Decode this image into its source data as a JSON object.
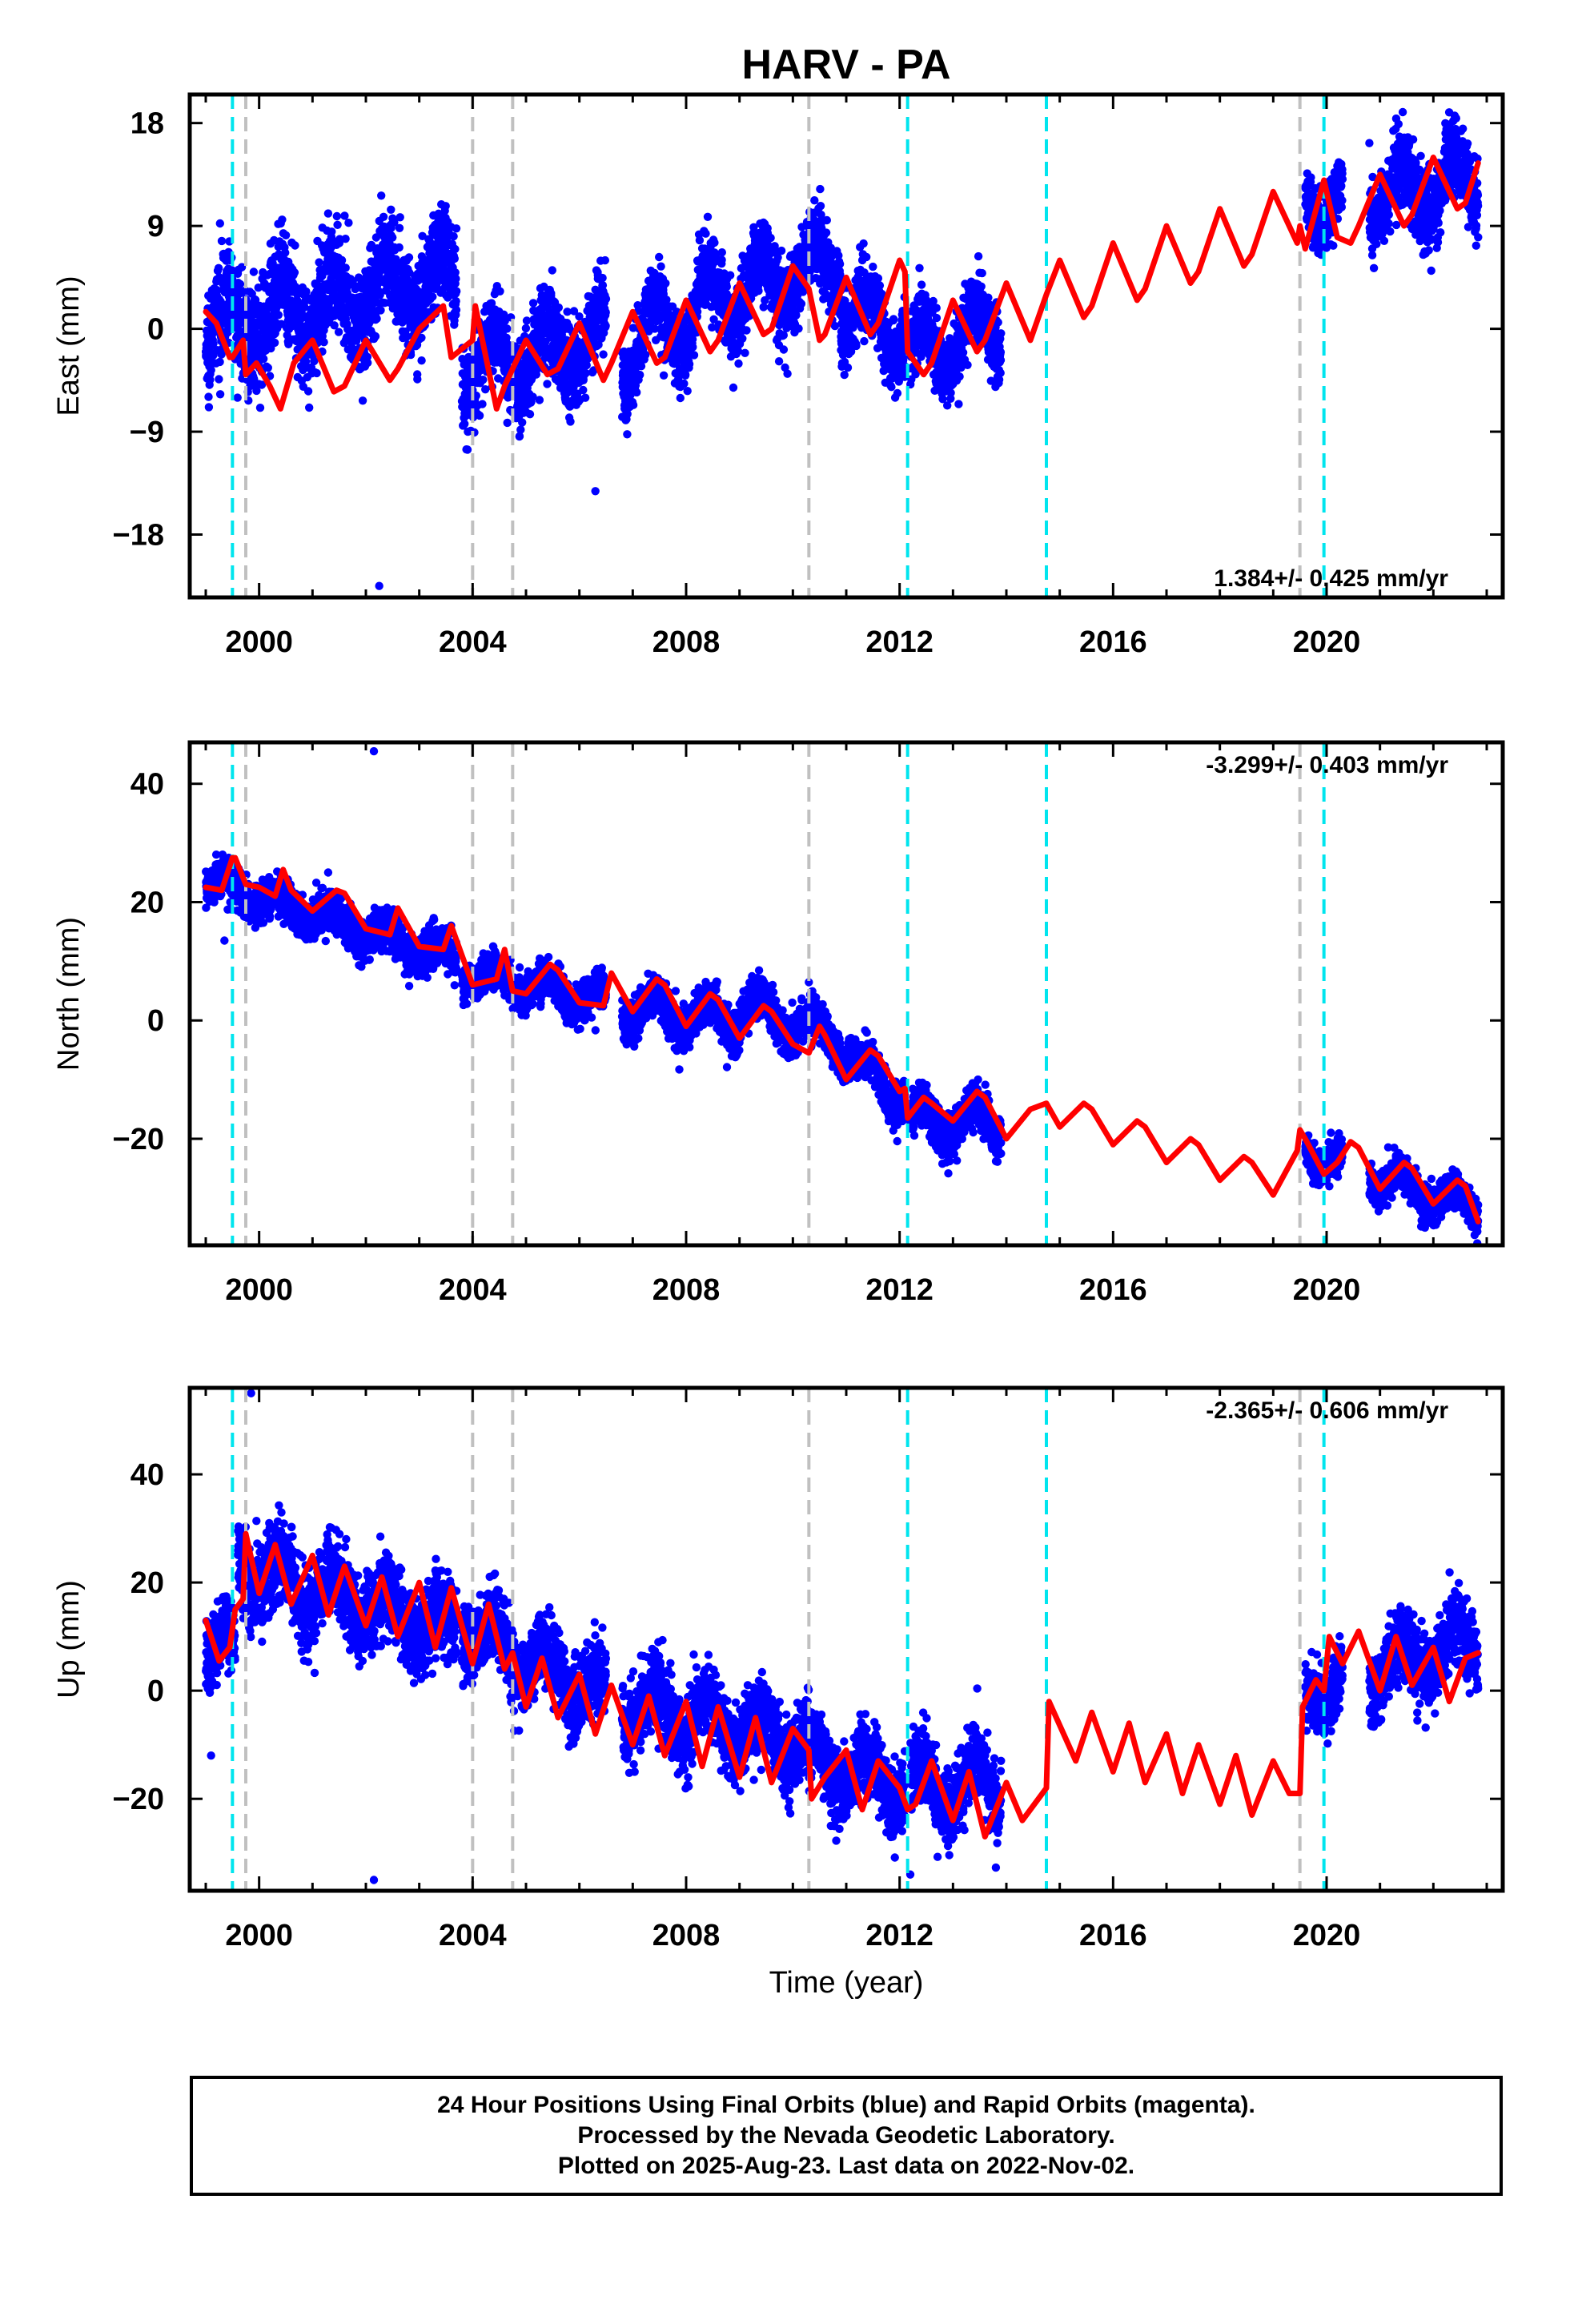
{
  "title": "HARV - PA",
  "footer": {
    "lines": [
      "24 Hour Positions Using Final Orbits (blue) and Rapid Orbits (magenta).",
      "Processed by the Nevada Geodetic Laboratory.",
      "Plotted on 2025-Aug-23. Last data on 2022-Nov-02."
    ]
  },
  "colors": {
    "data_points": "#0000ff",
    "model_fit": "#ff0000",
    "cyan_lines": "#00e5ee",
    "gray_lines": "#c0c0c0"
  },
  "chart_data": [
    {
      "type": "scatter",
      "component": "East",
      "ylabel": "East (mm)",
      "xlabel": "",
      "xlim": [
        1998.7,
        2023.3
      ],
      "ylim": [
        -23.5,
        20.5
      ],
      "xticks": [
        2000,
        2004,
        2008,
        2012,
        2016,
        2020
      ],
      "yticks": [
        18,
        9,
        0,
        -9,
        -18
      ],
      "rate_label": "1.384+/- 0.425 mm/yr",
      "rate_position": "bottom-right",
      "cyan_dashed_lines": [
        1999.5,
        2012.15,
        2014.75,
        2019.95
      ],
      "gray_dashed_lines": [
        1999.75,
        2004.0,
        2004.75,
        2010.3,
        2019.5
      ],
      "series": [
        {
          "style": "points",
          "segments": [
            {
              "start": 1999.0,
              "end": 2003.7,
              "base": 0.0,
              "rate": 1.0,
              "amp": 2.5,
              "noise": 2.6
            },
            {
              "start": 2003.8,
              "end": 2006.5,
              "base": -3.5,
              "rate": 1.0,
              "amp": 2.5,
              "noise": 2.2
            },
            {
              "start": 2006.8,
              "end": 2009.0,
              "base": -2.0,
              "rate": 2.6,
              "amp": 3.0,
              "noise": 2.0
            },
            {
              "start": 2009.0,
              "end": 2010.9,
              "base": 3.5,
              "rate": 1.2,
              "amp": 2.5,
              "noise": 2.0
            },
            {
              "start": 2010.9,
              "end": 2012.1,
              "base": 1.5,
              "rate": -1.5,
              "amp": 2.5,
              "noise": 1.8
            },
            {
              "start": 2012.2,
              "end": 2013.9,
              "base": -2.5,
              "rate": 1.8,
              "amp": 2.5,
              "noise": 1.8
            },
            {
              "start": 2019.6,
              "end": 2020.3,
              "base": 11.0,
              "rate": 1.0,
              "amp": 2.0,
              "noise": 1.6
            },
            {
              "start": 2020.8,
              "end": 2022.84,
              "base": 12.0,
              "rate": 0.3,
              "amp": 2.5,
              "noise": 2.0
            }
          ],
          "outliers": [
            [
              2002.25,
              -22.5
            ],
            [
              2006.3,
              -14.2
            ],
            [
              2012.0,
              -2.5
            ]
          ]
        },
        {
          "style": "line",
          "x": [
            1999.0,
            1999.2,
            1999.45,
            1999.5,
            1999.7,
            1999.75,
            1999.95,
            2000.2,
            2000.4,
            2000.65,
            2001.0,
            2001.4,
            2001.6,
            2002.0,
            2002.45,
            2002.6,
            2003.0,
            2003.45,
            2003.6,
            2004.0,
            2004.05,
            2004.45,
            2004.6,
            2004.75,
            2005.0,
            2005.4,
            2005.6,
            2006.0,
            2006.45,
            2006.6,
            2007.0,
            2007.45,
            2007.6,
            2008.0,
            2008.45,
            2008.6,
            2009.0,
            2009.45,
            2009.6,
            2010.0,
            2010.3,
            2010.5,
            2010.6,
            2011.0,
            2011.45,
            2011.6,
            2012.0,
            2012.1,
            2012.15,
            2012.45,
            2012.6,
            2013.0,
            2013.45,
            2013.6,
            2014.0,
            2014.45,
            2014.75,
            2015.0,
            2015.45,
            2015.6,
            2016.0,
            2016.45,
            2016.6,
            2017.0,
            2017.45,
            2017.6,
            2018.0,
            2018.45,
            2018.6,
            2019.0,
            2019.45,
            2019.5,
            2019.6,
            2019.95,
            2020.2,
            2020.45,
            2020.6,
            2021.0,
            2021.45,
            2021.6,
            2022.0,
            2022.45,
            2022.6,
            2022.84
          ],
          "y": [
            1.5,
            0.5,
            -2.5,
            -2.5,
            -1.0,
            -4.0,
            -3.0,
            -5.0,
            -7.0,
            -3.0,
            -1.0,
            -5.5,
            -5.0,
            -1.0,
            -4.5,
            -3.5,
            0.0,
            2.0,
            -2.5,
            -1.0,
            2.0,
            -7.0,
            -5.0,
            -3.5,
            -1.0,
            -4.0,
            -3.5,
            0.5,
            -4.5,
            -3.0,
            1.5,
            -3.0,
            -2.5,
            2.5,
            -2.0,
            -1.0,
            4.0,
            -0.5,
            0.0,
            5.5,
            3.5,
            -1.0,
            -0.5,
            4.5,
            -0.5,
            0.5,
            6.0,
            5.0,
            -2.0,
            -4.0,
            -3.0,
            2.5,
            -2.0,
            -1.0,
            4.0,
            -1.0,
            3.0,
            6.0,
            1.0,
            2.0,
            7.5,
            2.5,
            3.5,
            9.0,
            4.0,
            5.0,
            10.5,
            5.5,
            6.5,
            12.0,
            7.5,
            9.0,
            7.0,
            13.0,
            8.0,
            7.5,
            9.0,
            13.5,
            9.0,
            10.0,
            15.0,
            10.5,
            11.0,
            14.5
          ]
        }
      ]
    },
    {
      "type": "scatter",
      "component": "North",
      "ylabel": "North (mm)",
      "xlabel": "",
      "xlim": [
        1998.7,
        2023.3
      ],
      "ylim": [
        -38,
        47
      ],
      "xticks": [
        2000,
        2004,
        2008,
        2012,
        2016,
        2020
      ],
      "yticks": [
        40,
        20,
        0,
        -20
      ],
      "rate_label": "-3.299+/- 0.403 mm/yr",
      "rate_position": "top-right",
      "cyan_dashed_lines": [
        1999.5,
        2012.15,
        2014.75,
        2019.95
      ],
      "gray_dashed_lines": [
        1999.75,
        2004.0,
        2004.75,
        2010.3,
        2019.5
      ],
      "series": [
        {
          "style": "points",
          "segments": [
            {
              "start": 1999.0,
              "end": 2003.7,
              "base": 24.0,
              "rate": -3.0,
              "amp": 2.0,
              "noise": 2.0
            },
            {
              "start": 2003.8,
              "end": 2006.5,
              "base": 8.5,
              "rate": -2.0,
              "amp": 2.0,
              "noise": 1.8
            },
            {
              "start": 2006.8,
              "end": 2009.0,
              "base": 2.0,
              "rate": -1.0,
              "amp": 2.5,
              "noise": 2.0
            },
            {
              "start": 2009.0,
              "end": 2010.9,
              "base": 3.0,
              "rate": -3.5,
              "amp": 2.5,
              "noise": 2.0
            },
            {
              "start": 2010.9,
              "end": 2012.1,
              "base": -5.0,
              "rate": -7.0,
              "amp": 2.5,
              "noise": 2.0
            },
            {
              "start": 2012.2,
              "end": 2013.9,
              "base": -17.0,
              "rate": 0.0,
              "amp": 3.0,
              "noise": 2.2
            },
            {
              "start": 2019.6,
              "end": 2020.3,
              "base": -22.0,
              "rate": -3.0,
              "amp": 2.0,
              "noise": 1.8
            },
            {
              "start": 2020.8,
              "end": 2022.84,
              "base": -26.0,
              "rate": -3.0,
              "amp": 2.0,
              "noise": 1.8
            }
          ],
          "outliers": [
            [
              2002.15,
              45.5
            ],
            [
              1999.35,
              13.5
            ],
            [
              2013.9,
              -22.5
            ]
          ]
        },
        {
          "style": "line",
          "x": [
            1999.0,
            1999.3,
            1999.5,
            1999.55,
            1999.75,
            2000.0,
            2000.3,
            2000.45,
            2000.6,
            2001.0,
            2001.45,
            2001.6,
            2002.0,
            2002.45,
            2002.6,
            2003.0,
            2003.45,
            2003.6,
            2004.0,
            2004.45,
            2004.6,
            2004.75,
            2005.0,
            2005.45,
            2005.6,
            2006.0,
            2006.45,
            2006.6,
            2007.0,
            2007.45,
            2007.6,
            2008.0,
            2008.45,
            2008.6,
            2009.0,
            2009.45,
            2009.6,
            2010.0,
            2010.3,
            2010.5,
            2010.6,
            2011.0,
            2011.45,
            2011.6,
            2012.0,
            2012.1,
            2012.15,
            2012.45,
            2012.6,
            2013.0,
            2013.45,
            2013.6,
            2014.0,
            2014.45,
            2014.75,
            2015.0,
            2015.45,
            2015.6,
            2016.0,
            2016.45,
            2016.6,
            2017.0,
            2017.45,
            2017.6,
            2018.0,
            2018.45,
            2018.6,
            2019.0,
            2019.45,
            2019.5,
            2019.6,
            2019.95,
            2020.2,
            2020.45,
            2020.6,
            2021.0,
            2021.45,
            2021.6,
            2022.0,
            2022.45,
            2022.6,
            2022.84
          ],
          "y": [
            22.5,
            22.0,
            27.5,
            27.5,
            23.0,
            22.5,
            21.0,
            25.5,
            22.0,
            18.5,
            22.0,
            21.5,
            15.5,
            14.5,
            19.0,
            12.5,
            12.0,
            16.0,
            6.0,
            7.0,
            12.0,
            5.0,
            4.5,
            9.5,
            8.5,
            3.0,
            2.5,
            8.0,
            1.5,
            7.0,
            6.0,
            -1.0,
            4.5,
            3.5,
            -3.0,
            2.5,
            1.5,
            -4.0,
            -5.5,
            -1.0,
            -2.5,
            -10.0,
            -5.0,
            -6.0,
            -12.0,
            -11.5,
            -16.5,
            -13.0,
            -14.0,
            -17.0,
            -12.0,
            -13.0,
            -20.0,
            -15.0,
            -14.0,
            -18.0,
            -14.0,
            -15.0,
            -21.0,
            -17.0,
            -18.0,
            -24.0,
            -20.0,
            -21.0,
            -27.0,
            -23.0,
            -24.0,
            -29.5,
            -22.0,
            -18.5,
            -20.0,
            -26.0,
            -24.0,
            -20.5,
            -21.5,
            -28.5,
            -24.0,
            -25.0,
            -31.0,
            -27.0,
            -28.0,
            -34.0
          ]
        }
      ]
    },
    {
      "type": "scatter",
      "component": "Up",
      "ylabel": "Up (mm)",
      "xlabel": "Time (year)",
      "xlim": [
        1998.7,
        2023.3
      ],
      "ylim": [
        -37,
        56
      ],
      "xticks": [
        2000,
        2004,
        2008,
        2012,
        2016,
        2020
      ],
      "yticks": [
        40,
        20,
        0,
        -20
      ],
      "rate_label": "-2.365+/- 0.606 mm/yr",
      "rate_position": "top-right",
      "cyan_dashed_lines": [
        1999.5,
        2012.15,
        2014.75,
        2019.95
      ],
      "gray_dashed_lines": [
        1999.75,
        2004.0,
        2004.75,
        2010.3,
        2019.5
      ],
      "series": [
        {
          "style": "points",
          "segments": [
            {
              "start": 1999.0,
              "end": 1999.55,
              "base": 8.0,
              "rate": 0.0,
              "amp": 3.0,
              "noise": 4.0
            },
            {
              "start": 1999.6,
              "end": 2003.7,
              "base": 23.0,
              "rate": -3.0,
              "amp": 4.0,
              "noise": 4.5
            },
            {
              "start": 2003.8,
              "end": 2006.5,
              "base": 12.0,
              "rate": -5.0,
              "amp": 4.0,
              "noise": 4.0
            },
            {
              "start": 2006.8,
              "end": 2010.3,
              "base": -2.0,
              "rate": -2.2,
              "amp": 4.0,
              "noise": 4.0
            },
            {
              "start": 2010.3,
              "end": 2012.1,
              "base": -13.0,
              "rate": -2.5,
              "amp": 4.0,
              "noise": 4.0
            },
            {
              "start": 2012.2,
              "end": 2013.9,
              "base": -18.0,
              "rate": 0.5,
              "amp": 4.0,
              "noise": 4.0
            },
            {
              "start": 2019.6,
              "end": 2020.3,
              "base": 0.0,
              "rate": 2.0,
              "amp": 3.0,
              "noise": 3.5
            },
            {
              "start": 2020.8,
              "end": 2022.84,
              "base": 4.0,
              "rate": 2.5,
              "amp": 4.0,
              "noise": 4.0
            }
          ],
          "outliers": [
            [
              1999.85,
              55.0
            ],
            [
              2002.15,
              -35.0
            ],
            [
              2012.2,
              -34.0
            ],
            [
              1999.1,
              -12.0
            ]
          ]
        },
        {
          "style": "line",
          "x": [
            1999.0,
            1999.25,
            1999.45,
            1999.55,
            1999.7,
            1999.75,
            2000.0,
            2000.3,
            2000.6,
            2001.0,
            2001.3,
            2001.6,
            2002.0,
            2002.3,
            2002.6,
            2003.0,
            2003.3,
            2003.6,
            2004.0,
            2004.3,
            2004.6,
            2004.75,
            2005.0,
            2005.3,
            2005.6,
            2006.0,
            2006.3,
            2006.6,
            2007.0,
            2007.3,
            2007.6,
            2008.0,
            2008.3,
            2008.6,
            2009.0,
            2009.3,
            2009.6,
            2010.0,
            2010.3,
            2010.35,
            2010.6,
            2011.0,
            2011.3,
            2011.6,
            2012.0,
            2012.15,
            2012.3,
            2012.6,
            2013.0,
            2013.3,
            2013.6,
            2014.0,
            2014.3,
            2014.75,
            2014.8,
            2015.3,
            2015.6,
            2016.0,
            2016.3,
            2016.6,
            2017.0,
            2017.3,
            2017.6,
            2018.0,
            2018.3,
            2018.6,
            2019.0,
            2019.3,
            2019.5,
            2019.55,
            2019.8,
            2019.95,
            2020.05,
            2020.3,
            2020.6,
            2021.0,
            2021.3,
            2021.6,
            2022.0,
            2022.3,
            2022.6,
            2022.84
          ],
          "y": [
            13.0,
            5.5,
            8.0,
            15.0,
            17.0,
            29.0,
            18.0,
            27.0,
            16.0,
            25.0,
            14.0,
            23.0,
            12.0,
            21.0,
            10.0,
            20.0,
            8.0,
            19.0,
            5.0,
            16.0,
            4.0,
            7.0,
            -3.0,
            6.0,
            -5.0,
            3.0,
            -8.0,
            1.0,
            -10.0,
            -1.0,
            -12.0,
            -2.0,
            -14.0,
            -3.0,
            -16.0,
            -5.0,
            -17.0,
            -7.0,
            -11.0,
            -20.0,
            -16.0,
            -11.0,
            -22.0,
            -13.0,
            -18.0,
            -22.0,
            -21.0,
            -13.0,
            -24.0,
            -15.0,
            -27.0,
            -17.0,
            -24.0,
            -18.0,
            -2.0,
            -13.0,
            -4.0,
            -15.0,
            -6.0,
            -17.0,
            -8.0,
            -19.0,
            -10.0,
            -21.0,
            -12.0,
            -23.0,
            -13.0,
            -19.0,
            -19.0,
            -3.0,
            2.0,
            0.0,
            10.0,
            5.0,
            11.0,
            0.0,
            10.0,
            1.0,
            8.0,
            -2.0,
            6.0,
            7.0
          ]
        }
      ]
    }
  ]
}
